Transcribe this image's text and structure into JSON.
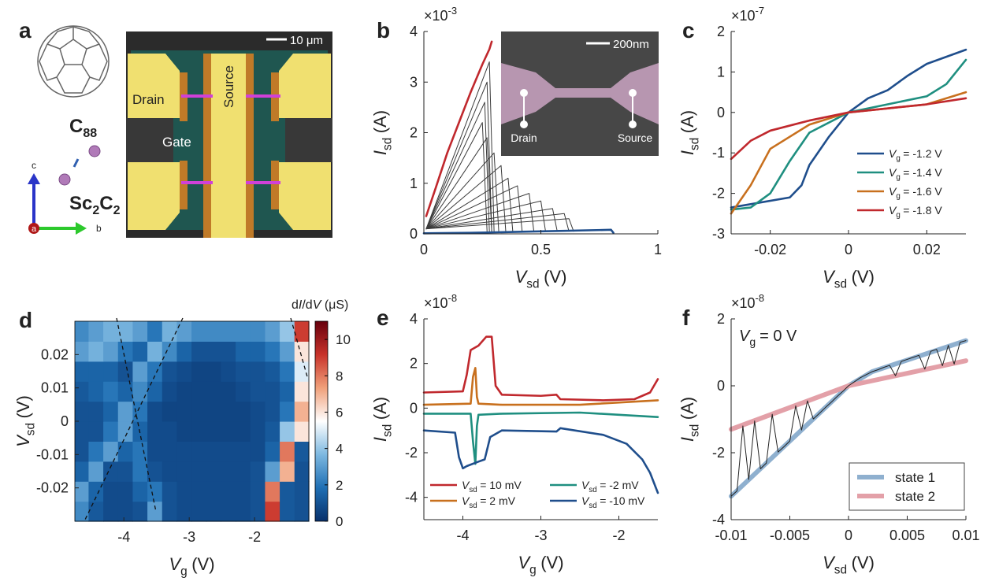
{
  "panel_a": {
    "label": "a",
    "molecule": {
      "main": "C",
      "sub": "88"
    },
    "cluster": [
      "Sc",
      "2",
      "C",
      "2"
    ],
    "axis_c": "c",
    "axis_b": "b",
    "axis_a": "a",
    "drain": "Drain",
    "source": "Source",
    "gate": "Gate",
    "scale_bar": "10 μm"
  },
  "chart_data": [
    {
      "type": "line",
      "panel_label": "b",
      "y_multiplier": {
        "base": "×10",
        "exponent": "-3"
      },
      "xlabel": {
        "main": "V",
        "sub": "sd",
        "unit": "(V)"
      },
      "ylabel": {
        "main": "I",
        "sub": "sd",
        "unit": "(A)"
      },
      "xlim": [
        0,
        1
      ],
      "xticks": [
        0,
        0.5,
        1
      ],
      "ylim": [
        0,
        4
      ],
      "yticks": [
        0,
        1,
        2,
        3,
        4
      ],
      "inset": {
        "scale_bar": "200nm",
        "left_electrode": "Drain",
        "right_electrode": "Source"
      },
      "series": [
        {
          "color": "#3a3a3a",
          "style": "thin",
          "x": [
            0.01,
            0.28,
            0.3
          ],
          "values": [
            0.1,
            3.4,
            0.05
          ]
        },
        {
          "color": "#3a3a3a",
          "style": "thin",
          "x": [
            0.01,
            0.27,
            0.29
          ],
          "values": [
            0.1,
            3.0,
            0.05
          ]
        },
        {
          "color": "#3a3a3a",
          "style": "thin",
          "x": [
            0.01,
            0.26,
            0.28
          ],
          "values": [
            0.1,
            2.6,
            0.05
          ]
        },
        {
          "color": "#3a3a3a",
          "style": "thin",
          "x": [
            0.01,
            0.25,
            0.27
          ],
          "values": [
            0.1,
            2.2,
            0.05
          ]
        },
        {
          "color": "#3a3a3a",
          "style": "thin",
          "x": [
            0.01,
            0.27,
            0.29
          ],
          "values": [
            0.1,
            1.9,
            0.05
          ]
        },
        {
          "color": "#3a3a3a",
          "style": "thin",
          "x": [
            0.01,
            0.3,
            0.32
          ],
          "values": [
            0.1,
            1.6,
            0.05
          ]
        },
        {
          "color": "#3a3a3a",
          "style": "thin",
          "x": [
            0.01,
            0.33,
            0.35
          ],
          "values": [
            0.1,
            1.35,
            0.05
          ]
        },
        {
          "color": "#3a3a3a",
          "style": "thin",
          "x": [
            0.01,
            0.36,
            0.38
          ],
          "values": [
            0.1,
            1.1,
            0.05
          ]
        },
        {
          "color": "#3a3a3a",
          "style": "thin",
          "x": [
            0.01,
            0.4,
            0.42
          ],
          "values": [
            0.1,
            0.95,
            0.05
          ]
        },
        {
          "color": "#3a3a3a",
          "style": "thin",
          "x": [
            0.01,
            0.45,
            0.47
          ],
          "values": [
            0.1,
            0.8,
            0.05
          ]
        },
        {
          "color": "#3a3a3a",
          "style": "thin",
          "x": [
            0.01,
            0.5,
            0.52
          ],
          "values": [
            0.1,
            0.65,
            0.05
          ]
        },
        {
          "color": "#3a3a3a",
          "style": "thin",
          "x": [
            0.01,
            0.55,
            0.57
          ],
          "values": [
            0.1,
            0.5,
            0.05
          ]
        },
        {
          "color": "#3a3a3a",
          "style": "thin",
          "x": [
            0.01,
            0.6,
            0.62
          ],
          "values": [
            0.1,
            0.4,
            0.05
          ]
        },
        {
          "color": "#3a3a3a",
          "style": "thin",
          "x": [
            0.01,
            0.62,
            0.64
          ],
          "values": [
            0.1,
            0.3,
            0.05
          ]
        },
        {
          "color": "#c0282d",
          "style": "thick",
          "x": [
            0.01,
            0.05,
            0.1,
            0.15,
            0.2,
            0.25,
            0.28,
            0.29
          ],
          "values": [
            0.35,
            0.9,
            1.6,
            2.2,
            2.8,
            3.35,
            3.65,
            3.8
          ]
        },
        {
          "color": "#1f4e8c",
          "style": "thick",
          "x": [
            0,
            0.2,
            0.4,
            0.6,
            0.8,
            0.81
          ],
          "values": [
            0.01,
            0.02,
            0.04,
            0.06,
            0.08,
            0.02
          ]
        }
      ]
    },
    {
      "type": "line",
      "panel_label": "c",
      "y_multiplier": {
        "base": "×10",
        "exponent": "-7"
      },
      "xlabel": {
        "main": "V",
        "sub": "sd",
        "unit": "(V)"
      },
      "ylabel": {
        "main": "I",
        "sub": "sd",
        "unit": "(A)"
      },
      "xlim": [
        -0.03,
        0.03
      ],
      "xticks": [
        -0.02,
        0,
        0.02
      ],
      "ylim": [
        -3,
        2
      ],
      "yticks": [
        -3,
        -2,
        -1,
        0,
        1,
        2
      ],
      "legend": "lower right",
      "series": [
        {
          "name": {
            "main": "V",
            "sub": "g",
            "rest": "= -1.2 V"
          },
          "color": "#1f4e8c",
          "style": "thick",
          "x": [
            -0.03,
            -0.015,
            -0.012,
            -0.01,
            -0.005,
            0,
            0.005,
            0.01,
            0.015,
            0.02,
            0.03
          ],
          "values": [
            -2.35,
            -2.1,
            -1.8,
            -1.3,
            -0.6,
            0,
            0.35,
            0.55,
            0.9,
            1.2,
            1.55
          ]
        },
        {
          "name": {
            "main": "V",
            "sub": "g",
            "rest": "= -1.4 V"
          },
          "color": "#1f8f80",
          "style": "thick",
          "x": [
            -0.03,
            -0.025,
            -0.02,
            -0.015,
            -0.01,
            0,
            0.01,
            0.02,
            0.025,
            0.03
          ],
          "values": [
            -2.4,
            -2.35,
            -2.0,
            -1.2,
            -0.5,
            0,
            0.2,
            0.4,
            0.7,
            1.3
          ]
        },
        {
          "name": {
            "main": "V",
            "sub": "g",
            "rest": "= -1.6 V"
          },
          "color": "#c8701e",
          "style": "thick",
          "x": [
            -0.03,
            -0.025,
            -0.02,
            -0.01,
            0,
            0.01,
            0.02,
            0.03
          ],
          "values": [
            -2.5,
            -1.8,
            -0.9,
            -0.3,
            0,
            0.1,
            0.2,
            0.5
          ]
        },
        {
          "name": {
            "main": "V",
            "sub": "g",
            "rest": "= -1.8 V"
          },
          "color": "#c0282d",
          "style": "thick",
          "x": [
            -0.03,
            -0.025,
            -0.02,
            -0.01,
            0,
            0.01,
            0.02,
            0.03
          ],
          "values": [
            -1.15,
            -0.7,
            -0.45,
            -0.2,
            0,
            0.1,
            0.2,
            0.35
          ]
        }
      ]
    },
    {
      "type": "heatmap",
      "panel_label": "d",
      "xlabel": {
        "main": "V",
        "sub": "g",
        "unit": "(V)"
      },
      "ylabel": {
        "main": "V",
        "sub": "sd",
        "unit": "(V)"
      },
      "xlim": [
        -4.75,
        -1.17
      ],
      "xticks": [
        -4,
        -3,
        -2
      ],
      "ylim": [
        -0.03,
        0.03
      ],
      "yticks": [
        -0.02,
        -0.01,
        0,
        0.01,
        0.02
      ],
      "x": [
        -4.65,
        -4.43,
        -4.2,
        -3.98,
        -3.75,
        -3.53,
        -3.3,
        -3.08,
        -2.85,
        -2.63,
        -2.4,
        -2.18,
        -1.95,
        -1.73,
        -1.5,
        -1.28
      ],
      "y": [
        -0.027,
        -0.021,
        -0.015,
        -0.009,
        -0.003,
        0.003,
        0.009,
        0.015,
        0.021,
        0.027
      ],
      "z": [
        [
          2.5,
          1.2,
          0.8,
          0.8,
          1,
          3,
          1,
          0.8,
          0.8,
          0.8,
          0.8,
          0.8,
          1,
          9,
          1.2,
          1
        ],
        [
          3,
          1.5,
          0.8,
          0.8,
          1.5,
          2,
          1,
          0.8,
          0.8,
          0.8,
          0.8,
          0.8,
          1,
          8,
          1.2,
          1
        ],
        [
          1.5,
          3,
          1,
          1,
          2,
          1,
          0.8,
          0.8,
          0.8,
          0.8,
          0.8,
          0.8,
          1,
          3,
          7,
          1
        ],
        [
          1,
          2,
          3,
          1.5,
          2,
          0.8,
          0.8,
          0.8,
          0.8,
          0.8,
          0.8,
          0.8,
          0.8,
          1.5,
          8,
          1.2
        ],
        [
          1,
          1,
          2,
          3,
          1.5,
          0.8,
          0.8,
          0.6,
          0.6,
          0.6,
          0.6,
          0.6,
          0.8,
          1.2,
          4,
          6
        ],
        [
          1,
          1,
          1.5,
          3,
          2,
          0.8,
          0.6,
          0.6,
          0.6,
          0.6,
          0.6,
          0.6,
          0.8,
          1,
          2,
          7
        ],
        [
          1.2,
          1.5,
          2,
          1.5,
          2.5,
          1.5,
          0.8,
          0.6,
          0.6,
          0.6,
          0.6,
          0.8,
          1,
          1,
          1.5,
          6
        ],
        [
          1.5,
          1.5,
          1.5,
          1,
          3,
          2,
          1,
          0.8,
          0.6,
          0.6,
          0.8,
          1,
          1,
          1.2,
          2,
          5
        ],
        [
          3,
          3.5,
          3,
          2,
          1.5,
          3.5,
          2.5,
          1.5,
          1,
          1,
          1,
          1.5,
          1.5,
          2,
          3,
          6
        ],
        [
          2.5,
          3,
          3.5,
          3.5,
          3,
          2,
          3.5,
          3,
          2.5,
          2.5,
          2.5,
          2.5,
          2.5,
          3,
          4,
          9
        ]
      ],
      "zlim": [
        0,
        11
      ],
      "cticks": [
        0,
        2,
        4,
        6,
        8,
        10
      ],
      "colormap": [
        "#08306b",
        "#1f6fb4",
        "#7db8e0",
        "#ffffff",
        "#f0a07a",
        "#c8322a",
        "#67000d"
      ],
      "colorbar_label": [
        "d",
        "I",
        "/d",
        "V",
        " (μS)"
      ]
    },
    {
      "type": "line",
      "panel_label": "e",
      "y_multiplier": {
        "base": "×10",
        "exponent": "-8"
      },
      "xlabel": {
        "main": "V",
        "sub": "g",
        "unit": "(V)"
      },
      "ylabel": {
        "main": "I",
        "sub": "sd",
        "unit": "(A)"
      },
      "xlim": [
        -4.5,
        -1.5
      ],
      "xticks": [
        -4,
        -3,
        -2
      ],
      "ylim": [
        -5,
        4
      ],
      "yticks": [
        -4,
        -2,
        0,
        2,
        4
      ],
      "legend": "lower",
      "series": [
        {
          "name": {
            "main": "V",
            "sub": "sd",
            "rest": "= 10 mV"
          },
          "color": "#c0282d",
          "style": "thick",
          "x": [
            -4.5,
            -4.0,
            -3.95,
            -3.9,
            -3.8,
            -3.7,
            -3.63,
            -3.58,
            -3.5,
            -3.0,
            -2.8,
            -2.75,
            -2.2,
            -1.8,
            -1.6,
            -1.5
          ],
          "values": [
            0.7,
            0.75,
            1.5,
            2.6,
            2.8,
            3.2,
            3.2,
            1.0,
            0.6,
            0.55,
            0.6,
            0.4,
            0.35,
            0.4,
            0.7,
            1.3
          ]
        },
        {
          "name": {
            "main": "V",
            "sub": "sd",
            "rest": "= 2 mV"
          },
          "color": "#c8701e",
          "style": "thick",
          "x": [
            -4.5,
            -3.9,
            -3.87,
            -3.84,
            -3.82,
            -3.8,
            -3.5,
            -2.5,
            -1.5
          ],
          "values": [
            0.15,
            0.2,
            1.4,
            1.8,
            0.5,
            0.2,
            0.15,
            0.15,
            0.35
          ]
        },
        {
          "name": {
            "main": "V",
            "sub": "sd",
            "rest": "= -2 mV"
          },
          "color": "#1f8f80",
          "style": "thick",
          "x": [
            -4.5,
            -3.9,
            -3.87,
            -3.84,
            -3.82,
            -3.8,
            -3.5,
            -2.5,
            -1.5
          ],
          "values": [
            -0.25,
            -0.25,
            -1.5,
            -2.5,
            -0.8,
            -0.3,
            -0.25,
            -0.2,
            -0.4
          ]
        },
        {
          "name": {
            "main": "V",
            "sub": "sd",
            "rest": "= -10 mV"
          },
          "color": "#1f4e8c",
          "style": "thick",
          "x": [
            -4.5,
            -4.1,
            -4.05,
            -4.0,
            -3.95,
            -3.8,
            -3.72,
            -3.65,
            -3.5,
            -2.8,
            -2.75,
            -2.2,
            -1.9,
            -1.7,
            -1.6,
            -1.5
          ],
          "values": [
            -1.0,
            -1.1,
            -2.2,
            -2.7,
            -2.6,
            -2.4,
            -2.3,
            -1.3,
            -1.0,
            -1.05,
            -0.9,
            -1.2,
            -1.6,
            -2.3,
            -2.9,
            -3.8
          ]
        }
      ]
    },
    {
      "type": "line",
      "panel_label": "f",
      "y_multiplier": {
        "base": "×10",
        "exponent": "-8"
      },
      "xlabel": {
        "main": "V",
        "sub": "sd",
        "unit": "(V)"
      },
      "ylabel": {
        "main": "I",
        "sub": "sd",
        "unit": "(A)"
      },
      "xlim": [
        -0.01,
        0.01
      ],
      "xticks": [
        -0.01,
        -0.005,
        0,
        0.005,
        0.01
      ],
      "ylim": [
        -4,
        2
      ],
      "yticks": [
        -4,
        -2,
        0,
        2
      ],
      "annotation": {
        "main": "V",
        "sub": "g",
        "rest": "= 0 V"
      },
      "legend": "lower right",
      "legend_frame": true,
      "series": [
        {
          "name": "state 1",
          "color": "#8fb0cf",
          "style": "wide",
          "x": [
            -0.01,
            0,
            0.002,
            0.01
          ],
          "values": [
            -3.3,
            0,
            0.42,
            1.35
          ]
        },
        {
          "name": "state 2",
          "color": "#e3a0a8",
          "style": "wide",
          "x": [
            -0.01,
            0,
            0.01
          ],
          "values": [
            -1.3,
            0,
            0.75
          ]
        },
        {
          "color": "#222222",
          "style": "thin",
          "x": [
            -0.01,
            -0.0095,
            -0.009,
            -0.0085,
            -0.008,
            -0.0075,
            -0.007,
            -0.0065,
            -0.006,
            -0.0055,
            -0.005,
            -0.0045,
            -0.004,
            -0.0035,
            -0.003,
            -0.0025,
            -0.002,
            -0.0015,
            -0.001,
            -0.0005,
            0,
            0.0005,
            0.001,
            0.0015,
            0.002,
            0.0025,
            0.003,
            0.0035,
            0.004,
            0.0045,
            0.005,
            0.0055,
            0.006,
            0.0065,
            0.007,
            0.0075,
            0.008,
            0.0085,
            0.009,
            0.0095,
            0.01
          ],
          "values": [
            -3.3,
            -3.14,
            -1.2,
            -2.8,
            -1.05,
            -2.48,
            -2.31,
            -0.85,
            -1.98,
            -1.82,
            -1.65,
            -0.6,
            -1.32,
            -0.45,
            -0.99,
            -0.83,
            -0.66,
            -0.5,
            -0.33,
            -0.17,
            0,
            0.12,
            0.24,
            0.33,
            0.42,
            0.48,
            0.55,
            0.61,
            0.3,
            0.73,
            0.79,
            0.85,
            0.91,
            0.5,
            1.03,
            1.09,
            0.6,
            1.21,
            0.65,
            1.3,
            1.35
          ]
        }
      ]
    }
  ]
}
